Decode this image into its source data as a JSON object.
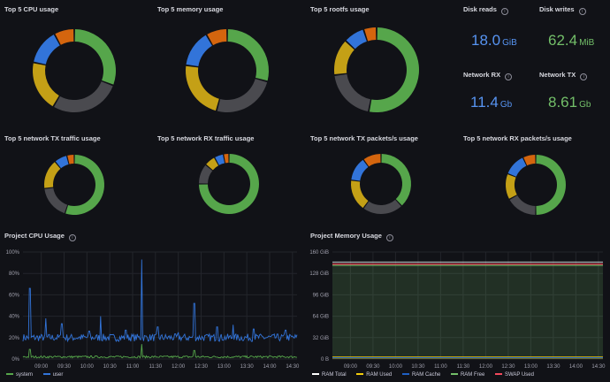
{
  "colors": {
    "green": "#56a64b",
    "gray": "#4a4a4f",
    "yellow": "#c4a016",
    "blue": "#3274d9",
    "orange": "#d4650e",
    "red": "#e02f44",
    "stat_blue": "#5794f2",
    "stat_green": "#73bf69"
  },
  "donut_panels": [
    {
      "title": "Top 5 CPU usage",
      "values": [
        31,
        28,
        20,
        14,
        8
      ]
    },
    {
      "title": "Top 5 memory usage",
      "values": [
        28,
        24,
        22,
        14,
        8
      ]
    },
    {
      "title": "Top 5 rootfs usage",
      "values": [
        53,
        20,
        14,
        8,
        5
      ]
    },
    {
      "title": "Top 5 network TX traffic usage",
      "values": [
        55,
        18,
        16,
        7,
        4
      ]
    },
    {
      "title": "Top 5 network RX traffic usage",
      "values": [
        75,
        11,
        6,
        5,
        3
      ]
    },
    {
      "title": "Top 5 network TX packets/s usage",
      "values": [
        38,
        22,
        17,
        13,
        10
      ]
    },
    {
      "title": "Top 5 network RX packets/s usage",
      "values": [
        50,
        17,
        14,
        12,
        7
      ]
    }
  ],
  "stats": [
    {
      "title": "Disk reads",
      "value": "18.0",
      "unit": "GiB",
      "color": "blue"
    },
    {
      "title": "Disk writes",
      "value": "62.4",
      "unit": "MiB",
      "color": "green"
    },
    {
      "title": "Network RX",
      "value": "11.4",
      "unit": "Gb",
      "color": "blue"
    },
    {
      "title": "Network TX",
      "value": "8.61",
      "unit": "Gb",
      "color": "green"
    }
  ],
  "cpu_panel": {
    "title": "Project CPU Usage",
    "legend": [
      {
        "name": "system",
        "color": "#56a64b"
      },
      {
        "name": "user",
        "color": "#3274d9"
      }
    ]
  },
  "mem_panel": {
    "title": "Project Memory Usage",
    "legend": [
      {
        "name": "RAM Total",
        "color": "#ffffff"
      },
      {
        "name": "RAM Used",
        "color": "#f2cc0c"
      },
      {
        "name": "RAM Cache",
        "color": "#1f60c4"
      },
      {
        "name": "RAM Free",
        "color": "#73bf69"
      },
      {
        "name": "SWAP Used",
        "color": "#f2495c"
      }
    ]
  },
  "chart_data": [
    {
      "type": "line",
      "title": "Project CPU Usage",
      "x": [
        "09:00",
        "09:30",
        "10:00",
        "10:30",
        "11:00",
        "11:30",
        "12:00",
        "12:30",
        "13:00",
        "13:30",
        "14:00",
        "14:30"
      ],
      "y_ticks": [
        "0%",
        "20%",
        "40%",
        "60%",
        "80%",
        "100%"
      ],
      "ylim": [
        0,
        100
      ],
      "xlim_hours": [
        8.6,
        14.6
      ],
      "series": [
        {
          "name": "user",
          "baseline": 20,
          "spikes": [
            [
              8.75,
              66
            ],
            [
              9.1,
              38
            ],
            [
              9.45,
              33
            ],
            [
              10.05,
              26
            ],
            [
              10.3,
              40
            ],
            [
              10.85,
              27
            ],
            [
              11.2,
              93
            ],
            [
              11.55,
              30
            ],
            [
              12.0,
              25
            ],
            [
              12.35,
              52
            ],
            [
              12.85,
              30
            ],
            [
              13.2,
              32
            ],
            [
              13.65,
              28
            ],
            [
              14.35,
              27
            ]
          ]
        },
        {
          "name": "system",
          "baseline": 2,
          "spikes": [
            [
              8.75,
              9
            ],
            [
              11.2,
              14
            ],
            [
              12.35,
              8
            ]
          ]
        }
      ]
    },
    {
      "type": "area",
      "title": "Project Memory Usage",
      "x": [
        "09:00",
        "09:30",
        "10:00",
        "10:30",
        "11:00",
        "11:30",
        "12:00",
        "12:30",
        "13:00",
        "13:30",
        "14:00",
        "14:30"
      ],
      "y_ticks": [
        "0 B",
        "32 GiB",
        "64 GiB",
        "96 GiB",
        "128 GiB",
        "160 GiB"
      ],
      "ylim": [
        0,
        160
      ],
      "xlim_hours": [
        8.6,
        14.6
      ],
      "series": [
        {
          "name": "RAM Total",
          "value": 145
        },
        {
          "name": "RAM Used",
          "value": 3
        },
        {
          "name": "RAM Cache",
          "value": 2
        },
        {
          "name": "RAM Free",
          "value": 140
        },
        {
          "name": "SWAP Used",
          "value": 142
        }
      ]
    }
  ]
}
